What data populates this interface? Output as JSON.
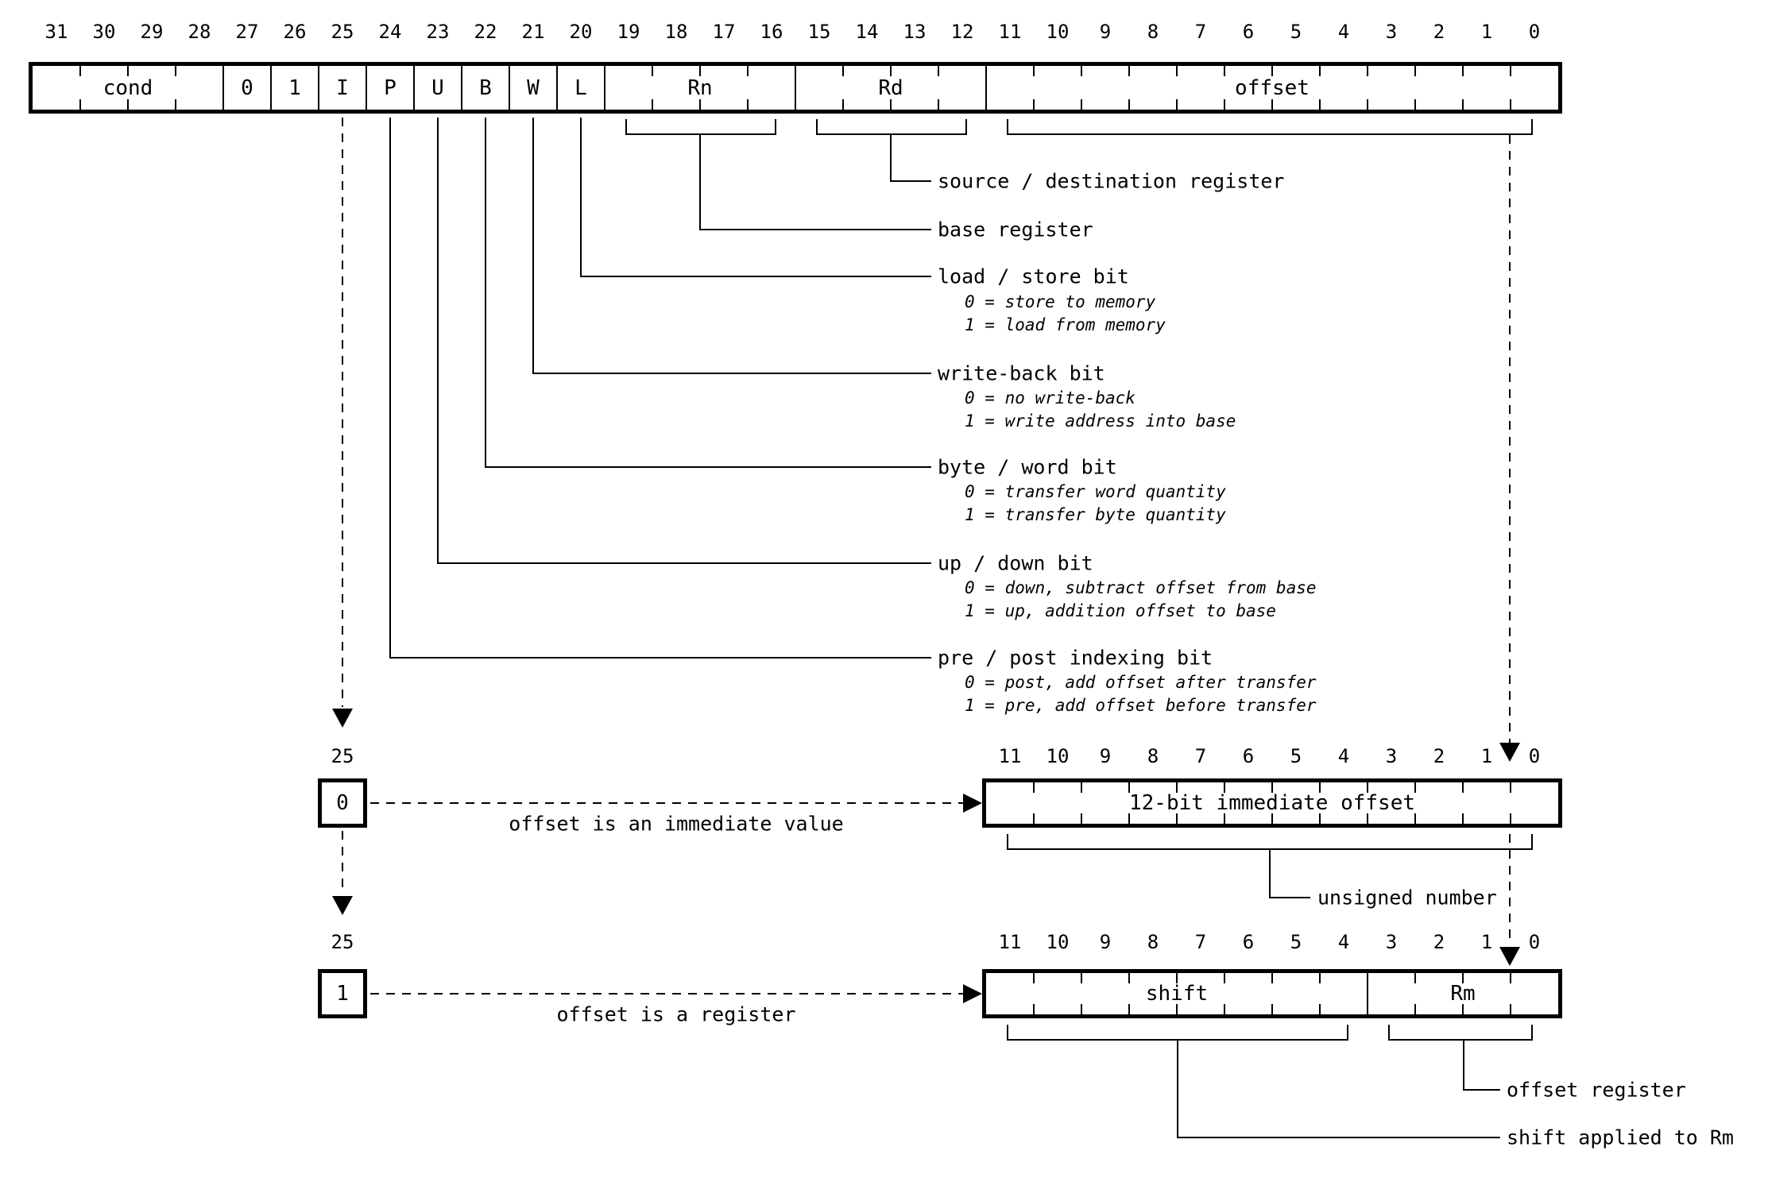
{
  "figure": {
    "background": "#ffffff",
    "ink": "#000000"
  },
  "instruction_word": {
    "bit_numbers": [
      "31",
      "30",
      "29",
      "28",
      "27",
      "26",
      "25",
      "24",
      "23",
      "22",
      "21",
      "20",
      "19",
      "18",
      "17",
      "16",
      "15",
      "14",
      "13",
      "12",
      "11",
      "10",
      "9",
      "8",
      "7",
      "6",
      "5",
      "4",
      "3",
      "2",
      "1",
      "0"
    ],
    "fields": [
      {
        "name": "cond",
        "label": "cond",
        "bits": 4
      },
      {
        "name": "bit27",
        "label": "0",
        "bits": 1
      },
      {
        "name": "bit26",
        "label": "1",
        "bits": 1
      },
      {
        "name": "I",
        "label": "I",
        "bits": 1
      },
      {
        "name": "P",
        "label": "P",
        "bits": 1
      },
      {
        "name": "U",
        "label": "U",
        "bits": 1
      },
      {
        "name": "B",
        "label": "B",
        "bits": 1
      },
      {
        "name": "W",
        "label": "W",
        "bits": 1
      },
      {
        "name": "L",
        "label": "L",
        "bits": 1
      },
      {
        "name": "Rn",
        "label": "Rn",
        "bits": 4
      },
      {
        "name": "Rd",
        "label": "Rd",
        "bits": 4
      },
      {
        "name": "offset",
        "label": "offset",
        "bits": 12
      }
    ]
  },
  "annotations": {
    "rd": {
      "label": "source / destination register"
    },
    "rn": {
      "label": "base register"
    },
    "l": {
      "label": "load / store bit",
      "notes": [
        "0 = store to memory",
        "1 = load from memory"
      ]
    },
    "w": {
      "label": "write-back bit",
      "notes": [
        "0 = no write-back",
        "1 = write address into base"
      ]
    },
    "b": {
      "label": "byte / word bit",
      "notes": [
        "0 = transfer word quantity",
        "1 = transfer byte quantity"
      ]
    },
    "u": {
      "label": "up / down bit",
      "notes": [
        "0 = down, subtract offset from base",
        "1 = up, addition offset to base"
      ]
    },
    "p": {
      "label": "pre / post indexing bit",
      "notes": [
        "0 = post, add offset after transfer",
        "1 = pre, add offset before transfer"
      ]
    }
  },
  "immediate_variant": {
    "bit_number": "25",
    "bit_value": "0",
    "caption": "offset is an immediate value",
    "bit_numbers": [
      "11",
      "10",
      "9",
      "8",
      "7",
      "6",
      "5",
      "4",
      "3",
      "2",
      "1",
      "0"
    ],
    "field_label": "12-bit immediate offset",
    "annotation": "unsigned number"
  },
  "register_variant": {
    "bit_number": "25",
    "bit_value": "1",
    "caption": "offset is a register",
    "bit_numbers": [
      "11",
      "10",
      "9",
      "8",
      "7",
      "6",
      "5",
      "4",
      "3",
      "2",
      "1",
      "0"
    ],
    "fields": [
      {
        "name": "shift",
        "label": "shift",
        "bits": 8
      },
      {
        "name": "Rm",
        "label": "Rm",
        "bits": 4
      }
    ],
    "annotations": {
      "rm": "offset register",
      "shift": "shift applied to Rm"
    }
  }
}
